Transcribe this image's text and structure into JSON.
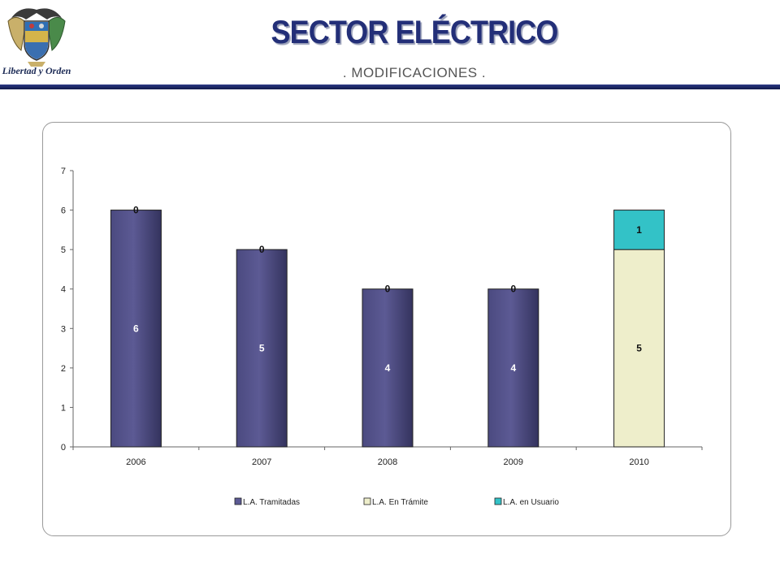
{
  "header": {
    "title": "SECTOR ELÉCTRICO",
    "subtitle": ". MODIFICACIONES .",
    "logo_caption": "Libertad y Orden"
  },
  "colors": {
    "tramitadas": "#5c5a94",
    "en_tramite": "#eeeecb",
    "en_usuario": "#33c2c7",
    "title": "#232f78",
    "header_rule": "#1c2663"
  },
  "chart_data": {
    "type": "bar",
    "stacked": true,
    "categories": [
      "2006",
      "2007",
      "2008",
      "2009",
      "2010"
    ],
    "series": [
      {
        "name": "L.A. Tramitadas",
        "values": [
          6,
          5,
          4,
          4,
          0
        ],
        "labels": [
          "6",
          "5",
          "4",
          "4",
          ""
        ]
      },
      {
        "name": "L.A. En Trámite",
        "values": [
          0,
          0,
          0,
          0,
          5
        ],
        "labels": [
          "0",
          "0",
          "0",
          "0",
          "5"
        ]
      },
      {
        "name": "L.A. en Usuario",
        "values": [
          0,
          0,
          0,
          0,
          1
        ],
        "labels": [
          "",
          "",
          "",
          "",
          "1"
        ]
      }
    ],
    "ylim": [
      0,
      7
    ],
    "yticks": [
      "0",
      "1",
      "2",
      "3",
      "4",
      "5",
      "6",
      "7"
    ],
    "grid": false,
    "legend": "bottom"
  }
}
